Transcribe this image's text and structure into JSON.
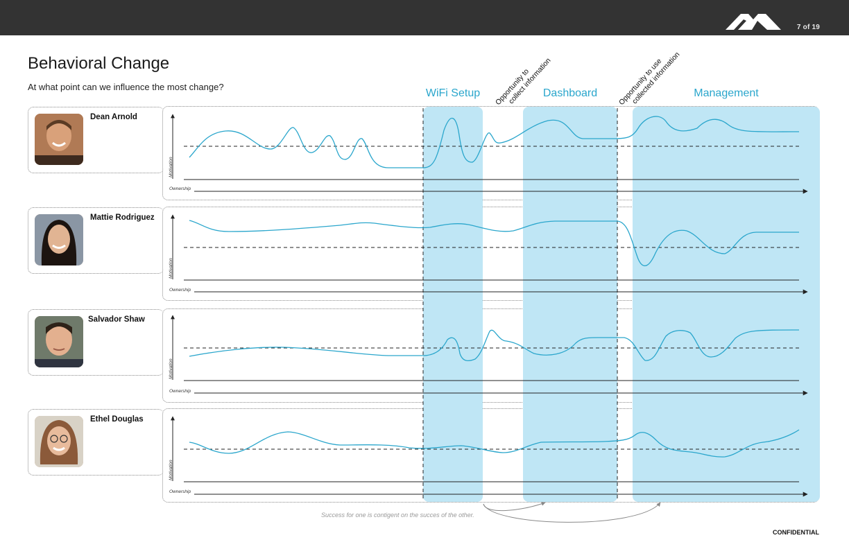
{
  "header": {
    "page_indicator": "7 of 19"
  },
  "title": "Behavioral Change",
  "subtitle": "At what point can we influence the most change?",
  "phases": [
    {
      "label": "WiFi Setup"
    },
    {
      "label": "Dashboard"
    },
    {
      "label": "Management"
    }
  ],
  "opportunities": [
    {
      "line1": "Opportunity to",
      "line2": "collect information"
    },
    {
      "line1": "Opportunity to use",
      "line2": "collected information"
    }
  ],
  "axes": {
    "x_label": "Ownership",
    "y_label": "Motivation"
  },
  "personas": [
    {
      "name": "Dean Arnold",
      "photo_icon": "smiling-man-portrait"
    },
    {
      "name": "Mattie Rodriguez",
      "photo_icon": "smiling-woman-portrait"
    },
    {
      "name": "Salvador Shaw",
      "photo_icon": "man-portrait"
    },
    {
      "name": "Ethel Douglas",
      "photo_icon": "woman-glasses-portrait"
    }
  ],
  "footnote": "Success for one is contigent on the succes of the other.",
  "confidential": "CONFIDENTIAL",
  "colors": {
    "accent": "#2aa6cc",
    "phase_fill": "#bfe6f5",
    "topbar": "#333333"
  }
}
